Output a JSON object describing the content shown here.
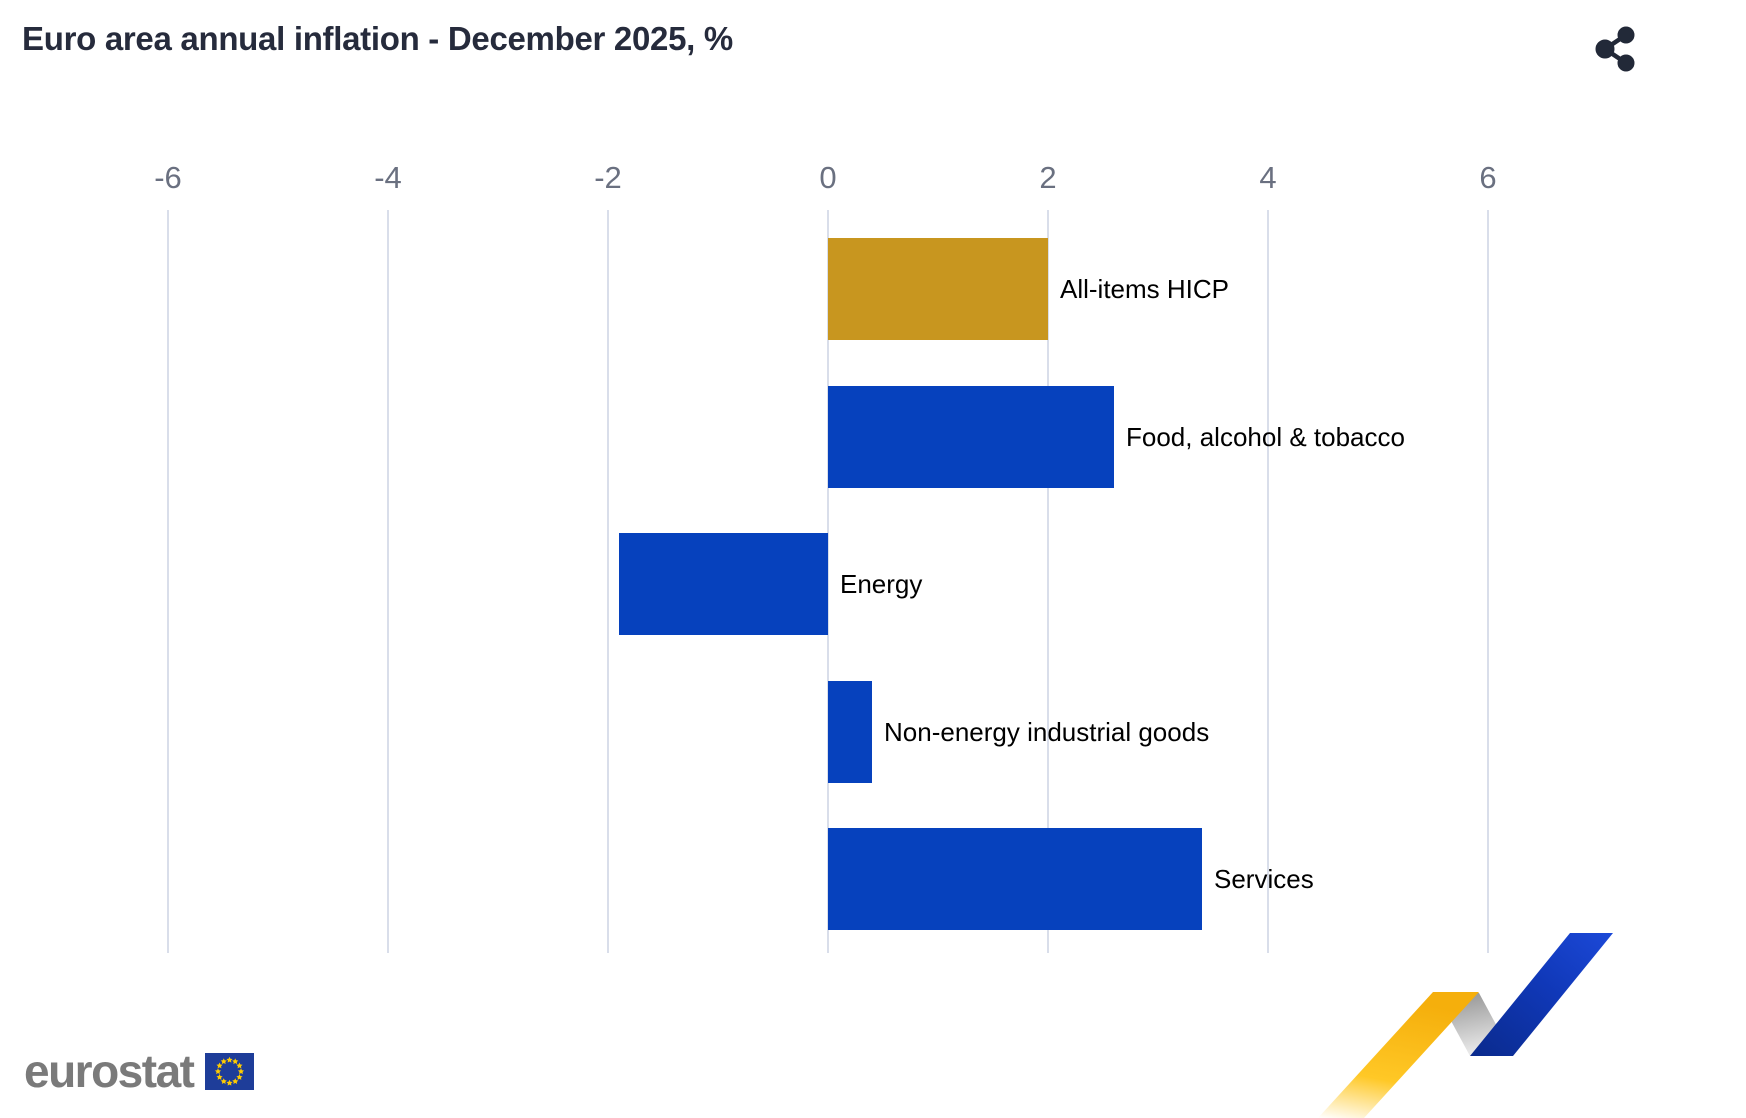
{
  "header": {
    "title": "Euro area annual inflation - December 2025, %"
  },
  "chart_data": {
    "type": "bar",
    "orientation": "horizontal",
    "title": "Euro area annual inflation - December 2025, %",
    "categories": [
      "All-items HICP",
      "Food, alcohol & tobacco",
      "Energy",
      "Non-energy industrial goods",
      "Services"
    ],
    "values": [
      2.0,
      2.6,
      -1.9,
      0.4,
      3.4
    ],
    "bar_colors": [
      "#C8961F",
      "#0641BD",
      "#0641BD",
      "#0641BD",
      "#0641BD"
    ],
    "x_ticks": [
      -6,
      -4,
      -2,
      0,
      2,
      4,
      6
    ],
    "xlim": [
      -6.6,
      7.3
    ],
    "grid": true,
    "xlabel": "",
    "ylabel": "",
    "unit": "%"
  },
  "icons": {
    "share": "share-icon",
    "eu_flag": "eu-flag-icon",
    "motif": "eurostat-zigzag-motif"
  },
  "footer": {
    "logo_text": "eurostat"
  },
  "colors": {
    "accent_blue": "#0641BD",
    "accent_gold": "#C8961F",
    "title": "#262B3C",
    "tick": "#6A7080",
    "gridline": "#D9DEEA",
    "bar_label": "#000000",
    "logo_gray": "#7A7A7A",
    "flag_blue": "#1E3D99",
    "star_yellow": "#FFCC00",
    "icon_dark": "#222938",
    "motif_yellow": "#FFC826",
    "motif_yellow_deep": "#F5AF0C",
    "motif_gray": "#8E8E8E",
    "motif_blue_dark": "#0A2A8C",
    "motif_blue_bright": "#1C49D8"
  }
}
